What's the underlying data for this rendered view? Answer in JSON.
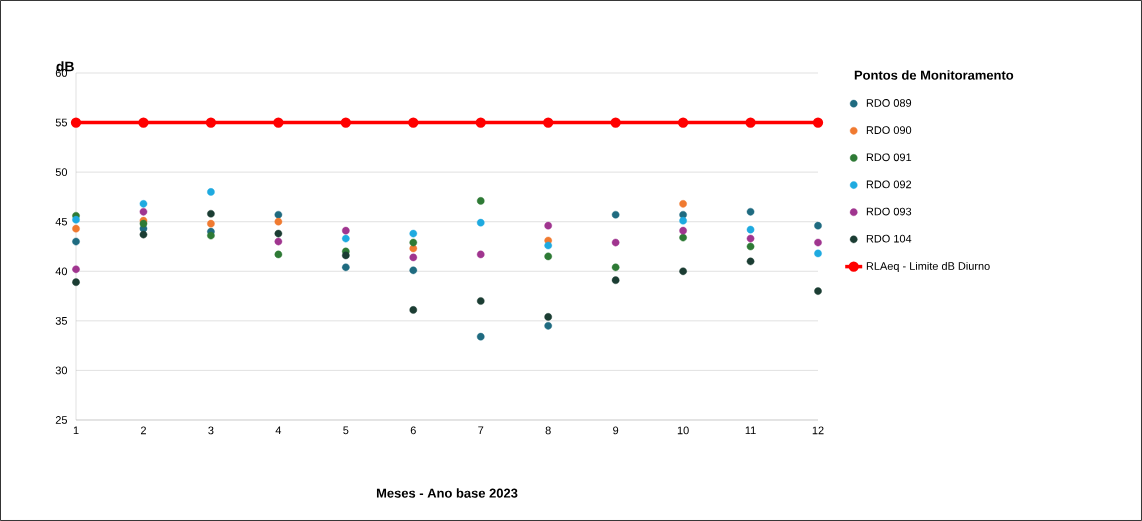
{
  "chart_data": {
    "type": "scatter",
    "ylabel": "dB",
    "xlabel": "Meses - Ano base 2023",
    "legend_title": "Pontos de Monitoramento",
    "x": [
      1,
      2,
      3,
      4,
      5,
      6,
      7,
      8,
      9,
      10,
      11,
      12
    ],
    "series": [
      {
        "name": "RDO 089",
        "color": "#1f6b80",
        "values": [
          43.0,
          44.3,
          44.0,
          45.7,
          40.4,
          40.1,
          33.4,
          34.5,
          45.7,
          45.7,
          46.0,
          44.6
        ]
      },
      {
        "name": "RDO 090",
        "color": "#f07a30",
        "values": [
          44.3,
          45.1,
          44.8,
          45.0,
          null,
          42.3,
          null,
          43.1,
          null,
          46.8,
          null,
          null
        ]
      },
      {
        "name": "RDO 091",
        "color": "#2e7a35",
        "values": [
          45.6,
          44.8,
          43.6,
          41.7,
          42.0,
          42.9,
          47.1,
          41.5,
          40.4,
          43.4,
          42.5,
          null
        ]
      },
      {
        "name": "RDO 092",
        "color": "#1eaae0",
        "values": [
          45.2,
          46.8,
          48.0,
          null,
          43.3,
          43.8,
          44.9,
          42.6,
          null,
          45.1,
          44.2,
          41.8
        ]
      },
      {
        "name": "RDO 093",
        "color": "#a0358f",
        "values": [
          40.2,
          46.0,
          null,
          43.0,
          44.1,
          41.4,
          41.7,
          44.6,
          42.9,
          44.1,
          43.3,
          42.9
        ]
      },
      {
        "name": "RDO 104",
        "color": "#1b3d33",
        "values": [
          38.9,
          43.7,
          45.8,
          43.8,
          41.6,
          36.1,
          37.0,
          35.4,
          39.1,
          40.0,
          41.0,
          38.0
        ]
      },
      {
        "name": "RLAeq - Limite dB Diurno",
        "type": "line",
        "color": "#ff0000",
        "line_style": "solid",
        "values": [
          55,
          55,
          55,
          55,
          55,
          55,
          55,
          55,
          55,
          55,
          55,
          55
        ]
      }
    ],
    "xlim": [
      1,
      12
    ],
    "ylim": [
      25,
      60
    ],
    "xticks": [
      1,
      2,
      3,
      4,
      5,
      6,
      7,
      8,
      9,
      10,
      11,
      12
    ],
    "yticks": [
      25,
      30,
      35,
      40,
      45,
      50,
      55,
      60
    ],
    "grid": "y",
    "legend": "right",
    "marker": "circle"
  }
}
